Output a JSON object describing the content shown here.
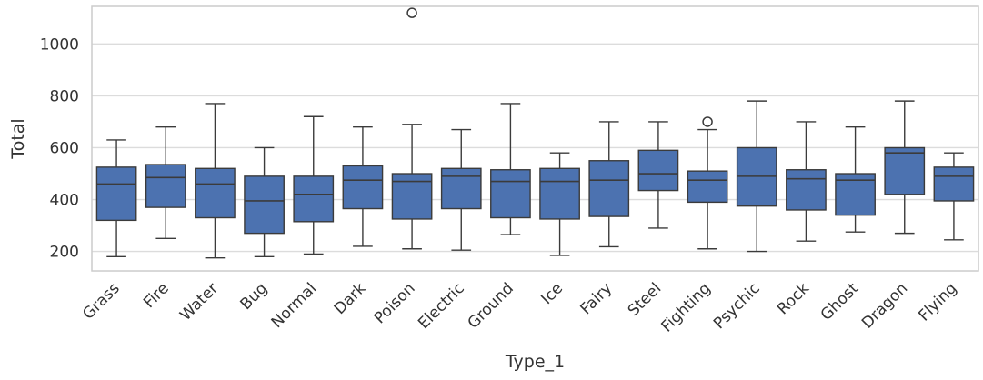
{
  "chart_data": {
    "type": "box",
    "xlabel": "Type_1",
    "ylabel": "Total",
    "ylim": [
      125,
      1145
    ],
    "yticks": [
      200,
      400,
      600,
      800,
      1000
    ],
    "grid": true,
    "box_color": "#4c72b0",
    "categories": [
      "Grass",
      "Fire",
      "Water",
      "Bug",
      "Normal",
      "Dark",
      "Poison",
      "Electric",
      "Ground",
      "Ice",
      "Fairy",
      "Steel",
      "Fighting",
      "Psychic",
      "Rock",
      "Ghost",
      "Dragon",
      "Flying"
    ],
    "boxes": [
      {
        "min": 180,
        "q1": 320,
        "median": 460,
        "q3": 525,
        "max": 630,
        "outliers": []
      },
      {
        "min": 250,
        "q1": 370,
        "median": 485,
        "q3": 535,
        "max": 680,
        "outliers": []
      },
      {
        "min": 175,
        "q1": 330,
        "median": 460,
        "q3": 520,
        "max": 770,
        "outliers": []
      },
      {
        "min": 180,
        "q1": 270,
        "median": 395,
        "q3": 490,
        "max": 600,
        "outliers": []
      },
      {
        "min": 190,
        "q1": 315,
        "median": 420,
        "q3": 490,
        "max": 720,
        "outliers": []
      },
      {
        "min": 220,
        "q1": 365,
        "median": 475,
        "q3": 530,
        "max": 680,
        "outliers": []
      },
      {
        "min": 210,
        "q1": 325,
        "median": 470,
        "q3": 500,
        "max": 690,
        "outliers": [
          1120
        ]
      },
      {
        "min": 205,
        "q1": 365,
        "median": 490,
        "q3": 520,
        "max": 670,
        "outliers": []
      },
      {
        "min": 265,
        "q1": 330,
        "median": 470,
        "q3": 515,
        "max": 770,
        "outliers": []
      },
      {
        "min": 185,
        "q1": 325,
        "median": 470,
        "q3": 520,
        "max": 580,
        "outliers": []
      },
      {
        "min": 218,
        "q1": 335,
        "median": 475,
        "q3": 550,
        "max": 700,
        "outliers": []
      },
      {
        "min": 290,
        "q1": 435,
        "median": 500,
        "q3": 590,
        "max": 700,
        "outliers": []
      },
      {
        "min": 210,
        "q1": 390,
        "median": 475,
        "q3": 510,
        "max": 670,
        "outliers": [
          700
        ]
      },
      {
        "min": 200,
        "q1": 375,
        "median": 490,
        "q3": 600,
        "max": 780,
        "outliers": []
      },
      {
        "min": 240,
        "q1": 360,
        "median": 480,
        "q3": 515,
        "max": 700,
        "outliers": []
      },
      {
        "min": 275,
        "q1": 340,
        "median": 475,
        "q3": 500,
        "max": 680,
        "outliers": []
      },
      {
        "min": 270,
        "q1": 420,
        "median": 580,
        "q3": 600,
        "max": 780,
        "outliers": []
      },
      {
        "min": 245,
        "q1": 395,
        "median": 490,
        "q3": 525,
        "max": 580,
        "outliers": []
      }
    ]
  }
}
